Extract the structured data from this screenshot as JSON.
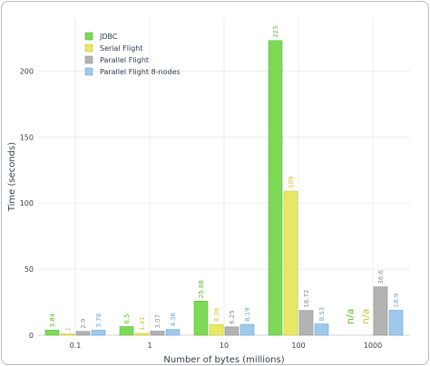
{
  "chart_data": {
    "type": "bar",
    "xlabel": "Number of bytes (millions)",
    "ylabel": "Time (seconds)",
    "categories": [
      "0.1",
      "1",
      "10",
      "100",
      "1000"
    ],
    "ylim": [
      0,
      240
    ],
    "yticks": [
      0,
      50,
      100,
      150,
      200
    ],
    "ytick_labels": [
      "0",
      "50",
      "100",
      "150",
      "200"
    ],
    "grid": true,
    "legend_position": "top-left",
    "series": [
      {
        "name": "JDBC",
        "color": "#7ed957",
        "stroke": "#5fb83a",
        "values": [
          3.84,
          6.5,
          25.88,
          223,
          null
        ],
        "labels": [
          "3.84",
          "6.5",
          "25.88",
          "223",
          "n/a"
        ]
      },
      {
        "name": "Serial Flight",
        "color": "#e9e864",
        "stroke": "#c9c63a",
        "values": [
          1,
          1.41,
          8.06,
          109,
          null
        ],
        "labels": [
          "1",
          "1.41",
          "8.06",
          "109",
          "n/a"
        ]
      },
      {
        "name": "Parallel Flight",
        "color": "#b3b3b3",
        "stroke": "#8f8f8f",
        "values": [
          2.9,
          3.07,
          6.25,
          18.72,
          36.6
        ],
        "labels": [
          "2.9",
          "3.07",
          "6.25",
          "18.72",
          "36.6"
        ]
      },
      {
        "name": "Parallel Flight 8-nodes",
        "color": "#9fc9ec",
        "stroke": "#6fa6d3",
        "values": [
          3.78,
          4.36,
          8.19,
          8.53,
          18.9
        ],
        "labels": [
          "3.78",
          "4.36",
          "8.19",
          "8.53",
          "18.9"
        ]
      }
    ]
  }
}
